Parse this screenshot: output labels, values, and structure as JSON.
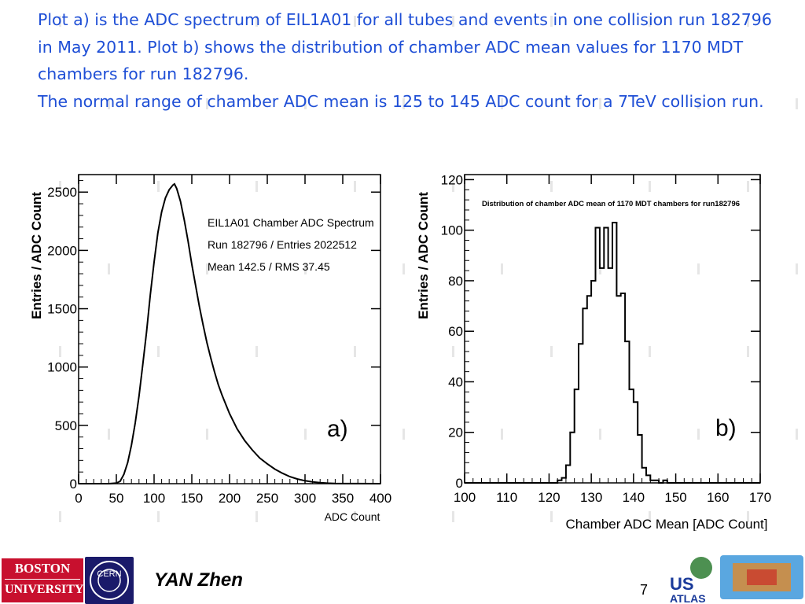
{
  "text": {
    "paragraph1": "Plot a) is the ADC spectrum of EIL1A01 for all tubes and events in one collision run 182796 in May 2011.  Plot b) shows the distribution of chamber ADC mean values for 1170 MDT chambers for run 182796.",
    "paragraph2": "The normal range of chamber ADC mean is 125 to 145 ADC count for a 7TeV collision run."
  },
  "footer": {
    "author": "YAN Zhen",
    "page_number": "7",
    "logos": {
      "boston_line1": "BOSTON",
      "boston_line2": "UNIVERSITY",
      "cern": "CERN",
      "usatlas_us": "US",
      "usatlas_atlas": "ATLAS"
    }
  },
  "colors": {
    "text": "#1f4fd6",
    "plot_line": "#000000",
    "boston_red": "#c8102e"
  },
  "chart_data": [
    {
      "type": "line",
      "panel_label": "a)",
      "xlabel": "ADC Count",
      "ylabel": "Entries / ADC Count",
      "xlim": [
        0,
        400
      ],
      "ylim": [
        0,
        2650
      ],
      "x_ticks": [
        0,
        50,
        100,
        150,
        200,
        250,
        300,
        350,
        400
      ],
      "y_ticks": [
        0,
        500,
        1000,
        1500,
        2000,
        2500
      ],
      "annotation": [
        "EIL1A01 Chamber ADC Spectrum",
        "Run 182796 / Entries 2022512",
        "Mean 142.5  / RMS 37.45"
      ],
      "series": [
        {
          "x": [
            0,
            40,
            50,
            55,
            60,
            65,
            70,
            75,
            80,
            85,
            90,
            95,
            100,
            105,
            110,
            115,
            120,
            125,
            127,
            130,
            135,
            140,
            145,
            150,
            155,
            160,
            165,
            170,
            175,
            180,
            185,
            190,
            200,
            210,
            220,
            230,
            240,
            250,
            260,
            270,
            280,
            290,
            300,
            310,
            320,
            330,
            340,
            400
          ],
          "y": [
            0,
            0,
            5,
            20,
            80,
            180,
            330,
            520,
            750,
            1020,
            1300,
            1620,
            1900,
            2150,
            2330,
            2450,
            2520,
            2560,
            2570,
            2530,
            2420,
            2260,
            2080,
            1880,
            1700,
            1520,
            1360,
            1210,
            1080,
            960,
            850,
            760,
            600,
            470,
            370,
            290,
            220,
            170,
            125,
            90,
            60,
            40,
            25,
            15,
            8,
            4,
            2,
            0
          ]
        }
      ]
    },
    {
      "type": "bar",
      "panel_label": "b)",
      "title": "Distribution of chamber ADC mean of 1170 MDT chambers for run182796",
      "xlabel": "Chamber ADC Mean [ADC Count]",
      "ylabel": "Entries / ADC Count",
      "xlim": [
        100,
        170
      ],
      "ylim": [
        0,
        122
      ],
      "x_ticks": [
        100,
        110,
        120,
        130,
        140,
        150,
        160,
        170
      ],
      "y_ticks": [
        0,
        20,
        40,
        60,
        80,
        100,
        120
      ],
      "bin_edges": [
        100,
        101,
        102,
        103,
        104,
        105,
        106,
        107,
        108,
        109,
        110,
        111,
        112,
        113,
        114,
        115,
        116,
        117,
        118,
        119,
        120,
        121,
        122,
        123,
        124,
        125,
        126,
        127,
        128,
        129,
        130,
        131,
        132,
        133,
        134,
        135,
        136,
        137,
        138,
        139,
        140,
        141,
        142,
        143,
        144,
        145,
        146,
        147,
        148,
        149,
        150,
        151,
        152,
        153,
        154,
        155,
        156,
        157,
        158,
        159,
        160,
        161,
        162,
        163,
        164,
        165,
        166,
        167,
        168,
        169,
        170
      ],
      "values": [
        0,
        0,
        0,
        0,
        0,
        0,
        0,
        0,
        0,
        0,
        0,
        0,
        0,
        0,
        0,
        0,
        0,
        0,
        0,
        0,
        0,
        0,
        1,
        2,
        7,
        20,
        37,
        55,
        69,
        74,
        80,
        101,
        85,
        101,
        85,
        103,
        74,
        75,
        56,
        37,
        32,
        19,
        6,
        3,
        1,
        1,
        0,
        1,
        0,
        0,
        0,
        0,
        0,
        0,
        0,
        0,
        0,
        0,
        0,
        0,
        0,
        0,
        0,
        0,
        0,
        0,
        0,
        0,
        0,
        0
      ]
    }
  ]
}
